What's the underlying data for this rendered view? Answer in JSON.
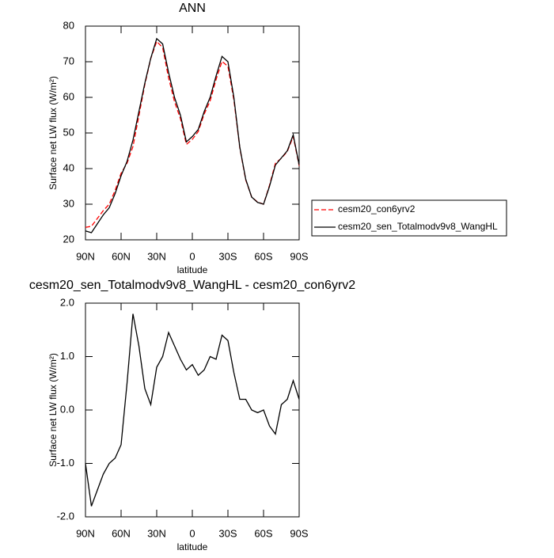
{
  "chart_data": [
    {
      "type": "line",
      "title": "ANN",
      "x_label": "latitude",
      "y_label": "Surface net LW flux (W/m²)",
      "x": [
        90,
        85,
        80,
        75,
        70,
        65,
        60,
        55,
        50,
        45,
        40,
        35,
        30,
        25,
        20,
        15,
        10,
        5,
        0,
        -5,
        -10,
        -15,
        -20,
        -25,
        -30,
        -35,
        -40,
        -45,
        -50,
        -55,
        -60,
        -65,
        -70,
        -75,
        -80,
        -85,
        -90
      ],
      "xlim": [
        90,
        -90
      ],
      "xticks": [
        {
          "value": 90,
          "label": "90N"
        },
        {
          "value": 60,
          "label": "60N"
        },
        {
          "value": 30,
          "label": "30N"
        },
        0,
        {
          "value": -30,
          "label": "30S"
        },
        {
          "value": -60,
          "label": "60S"
        },
        {
          "value": -90,
          "label": "90S"
        }
      ],
      "ylim": [
        20,
        80
      ],
      "yticks": [
        20,
        30,
        40,
        50,
        60,
        70,
        80
      ],
      "legend": "outside-right",
      "series": [
        {
          "name": "cesm20_con6yrv2",
          "color": "#ff0000",
          "dash": true,
          "values": [
            23.5,
            23.8,
            26,
            28.2,
            30,
            33.9,
            38.7,
            41.5,
            46.2,
            54.8,
            63.6,
            70.9,
            75.7,
            74,
            65.5,
            58.8,
            54,
            46.8,
            48.2,
            50.4,
            55.3,
            59,
            65,
            70.1,
            68.7,
            59.3,
            45.8,
            36.8,
            32,
            30.6,
            30,
            35.3,
            41.5,
            42.9,
            44.8,
            49,
            40.8
          ]
        },
        {
          "name": "cesm20_sen_Totalmodv9v8_WangHL",
          "color": "#000000",
          "dash": false,
          "values": [
            22.5,
            22,
            24.5,
            27,
            29,
            33,
            38,
            42,
            48,
            56,
            64,
            71,
            76.5,
            75,
            67,
            60,
            55,
            47.5,
            49,
            51,
            56,
            60,
            66,
            71.5,
            70,
            60,
            46,
            37,
            32,
            30.5,
            30,
            35,
            41,
            43,
            45,
            49.5,
            41
          ]
        }
      ]
    },
    {
      "type": "line",
      "title": "cesm20_sen_Totalmodv9v8_WangHL - cesm20_con6yrv2",
      "x_label": "latitude",
      "y_label": "Surface net LW flux (W/m²)",
      "x": [
        90,
        85,
        80,
        75,
        70,
        65,
        60,
        55,
        50,
        45,
        40,
        35,
        30,
        25,
        20,
        15,
        10,
        5,
        0,
        -5,
        -10,
        -15,
        -20,
        -25,
        -30,
        -35,
        -40,
        -45,
        -50,
        -55,
        -60,
        -65,
        -70,
        -75,
        -80,
        -85,
        -90
      ],
      "xlim": [
        90,
        -90
      ],
      "xticks": [
        {
          "value": 90,
          "label": "90N"
        },
        {
          "value": 60,
          "label": "60N"
        },
        {
          "value": 30,
          "label": "30N"
        },
        0,
        {
          "value": -30,
          "label": "30S"
        },
        {
          "value": -60,
          "label": "60S"
        },
        {
          "value": -90,
          "label": "90S"
        }
      ],
      "ylim": [
        -2,
        2
      ],
      "yticks": [
        {
          "value": -2,
          "label": "-2.0"
        },
        {
          "value": -1,
          "label": "-1.0"
        },
        {
          "value": 0,
          "label": "0.0"
        },
        {
          "value": 1,
          "label": "1.0"
        },
        {
          "value": 2,
          "label": "2.0"
        }
      ],
      "series": [
        {
          "color": "#000000",
          "dash": false,
          "values": [
            -1.0,
            -1.8,
            -1.5,
            -1.2,
            -1.0,
            -0.9,
            -0.65,
            0.5,
            1.8,
            1.2,
            0.4,
            0.1,
            0.8,
            1.0,
            1.45,
            1.2,
            0.95,
            0.75,
            0.85,
            0.65,
            0.75,
            1.0,
            0.95,
            1.4,
            1.3,
            0.7,
            0.2,
            0.2,
            0.0,
            -0.05,
            0.0,
            -0.3,
            -0.45,
            0.1,
            0.2,
            0.55,
            0.2
          ]
        }
      ]
    }
  ]
}
